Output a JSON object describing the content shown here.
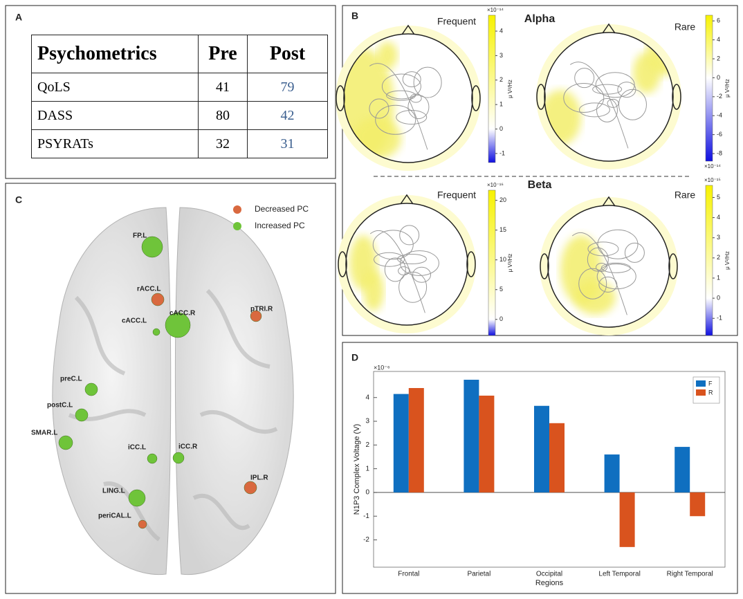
{
  "panels": [
    "A",
    "B",
    "C",
    "D"
  ],
  "table": {
    "header": [
      "Psychometrics",
      "Pre",
      "Post"
    ],
    "rows": [
      [
        "QoLS",
        "41",
        "79"
      ],
      [
        "DASS",
        "80",
        "42"
      ],
      [
        "PSYRATs",
        "32",
        "31"
      ]
    ]
  },
  "topomaps": {
    "bands": [
      "Alpha",
      "Beta"
    ],
    "maps": [
      {
        "band": 0,
        "condition": "Frequent",
        "unit": "μ V²/Hz",
        "multiplier": "×10⁻¹⁴",
        "clim": [
          -1.37,
          4.65
        ],
        "ticks": [
          4,
          3,
          2,
          1,
          0,
          -1
        ]
      },
      {
        "band": 0,
        "condition": "Rare",
        "unit": "μ V²/Hz",
        "multiplier": "×10⁻¹⁴",
        "clim": [
          -8.8,
          6.6
        ],
        "ticks": [
          6,
          4,
          2,
          0,
          -2,
          -4,
          -6,
          -8
        ]
      },
      {
        "band": 1,
        "condition": "Frequent",
        "unit": "μ V²/Hz",
        "multiplier": "×10⁻¹⁶",
        "clim": [
          -2.7,
          21.7
        ],
        "ticks": [
          20,
          15,
          10,
          5,
          0
        ]
      },
      {
        "band": 1,
        "condition": "Rare",
        "unit": "μ V²/Hz",
        "multiplier": "×10⁻¹⁵",
        "clim": [
          -1.85,
          5.6
        ],
        "ticks": [
          5,
          4,
          3,
          2,
          1,
          0,
          -1
        ]
      }
    ]
  },
  "brain": {
    "legend": [
      {
        "label": "Decreased PC",
        "color": "#d9693f"
      },
      {
        "label": "Increased PC",
        "color": "#6fc43a"
      }
    ],
    "nodes": [
      {
        "label": "FP.L",
        "change": 1
      },
      {
        "label": "rACC.L",
        "change": 0
      },
      {
        "label": "cACC.R",
        "change": 1
      },
      {
        "label": "cACC.L",
        "change": 1
      },
      {
        "label": "pTRI.R",
        "change": 0
      },
      {
        "label": "preC.L",
        "change": 1
      },
      {
        "label": "postC.L",
        "change": 1
      },
      {
        "label": "SMAR.L",
        "change": 1
      },
      {
        "label": "iCC.L",
        "change": 1
      },
      {
        "label": "iCC.R",
        "change": 1
      },
      {
        "label": "IPL.R",
        "change": 0
      },
      {
        "label": "LING.L",
        "change": 1
      },
      {
        "label": "periCAL.L",
        "change": 0
      }
    ]
  },
  "chart_data": {
    "type": "bar",
    "y_multiplier": "×10⁻⁶",
    "x_label": "Regions",
    "y_label": "N1P3 Complex Voltage (V)",
    "categories": [
      "Frontal",
      "Parietal",
      "Occipital",
      "Left Temporal",
      "Right Temporal"
    ],
    "series": [
      {
        "name": "F",
        "color": "#0f6fc0",
        "values": [
          4.15,
          4.75,
          3.65,
          1.6,
          1.92
        ]
      },
      {
        "name": "R",
        "color": "#d9531e",
        "values": [
          4.4,
          4.08,
          2.92,
          -2.3,
          -1.0
        ]
      }
    ],
    "ylim": [
      -3.15,
      5.1
    ],
    "yticks": [
      -2,
      -1,
      0,
      1,
      2,
      3,
      4
    ],
    "legend": "upper right"
  }
}
